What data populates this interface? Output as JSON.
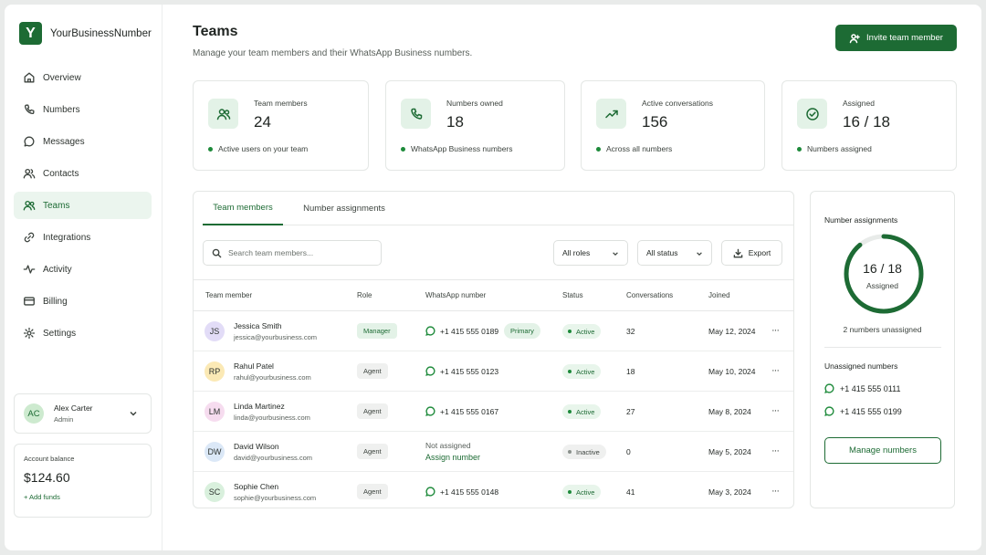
{
  "brand": {
    "logo_letter": "Y",
    "name": "YourBusinessNumber"
  },
  "nav": [
    {
      "label": "Overview",
      "icon": "home-icon"
    },
    {
      "label": "Numbers",
      "icon": "phone-icon"
    },
    {
      "label": "Messages",
      "icon": "message-icon"
    },
    {
      "label": "Contacts",
      "icon": "contacts-icon"
    },
    {
      "label": "Teams",
      "icon": "users-icon",
      "active": true
    },
    {
      "label": "Integrations",
      "icon": "link-icon"
    },
    {
      "label": "Activity",
      "icon": "activity-icon"
    },
    {
      "label": "Billing",
      "icon": "card-icon"
    },
    {
      "label": "Settings",
      "icon": "gear-icon"
    }
  ],
  "user": {
    "initials": "AC",
    "name": "Alex Carter",
    "role": "Admin"
  },
  "balance": {
    "label": "Account balance",
    "amount": "$124.60",
    "add_label": "+ Add funds"
  },
  "header": {
    "title": "Teams",
    "subtitle": "Manage your team members and their WhatsApp Business numbers.",
    "invite_label": "Invite team member"
  },
  "stats": [
    {
      "label": "Team members",
      "value": "24",
      "note": "Active users on your team",
      "icon": "users-icon"
    },
    {
      "label": "Numbers owned",
      "value": "18",
      "note": "WhatsApp Business numbers",
      "icon": "phone-icon"
    },
    {
      "label": "Active conversations",
      "value": "156",
      "note": "Across all numbers",
      "icon": "trend-up-icon"
    },
    {
      "label": "Assigned",
      "value": "16 / 18",
      "note": "Numbers assigned",
      "icon": "check-circle-icon"
    }
  ],
  "tabs": [
    "Team members",
    "Number assignments"
  ],
  "search": {
    "placeholder": "Search team members..."
  },
  "filters": {
    "roles": "All roles",
    "status": "All status",
    "export": "Export"
  },
  "table": {
    "columns": [
      "Team member",
      "Role",
      "WhatsApp number",
      "Status",
      "Conversations",
      "Joined"
    ],
    "rows": [
      {
        "initials": "JS",
        "avatar_color": "#e2dcf7",
        "name": "Jessica Smith",
        "email": "jessica@yourbusiness.com",
        "role": "Manager",
        "number": "+1 415 555 0189",
        "primary": "Primary",
        "status": "Active",
        "conversations": "32",
        "joined": "May 12, 2024"
      },
      {
        "initials": "RP",
        "avatar_color": "#fbe9b5",
        "name": "Rahul Patel",
        "email": "rahul@yourbusiness.com",
        "role": "Agent",
        "number": "+1 415 555 0123",
        "status": "Active",
        "conversations": "18",
        "joined": "May 10, 2024"
      },
      {
        "initials": "LM",
        "avatar_color": "#f6dcef",
        "name": "Linda Martinez",
        "email": "linda@yourbusiness.com",
        "role": "Agent",
        "number": "+1 415 555 0167",
        "status": "Active",
        "conversations": "27",
        "joined": "May 8, 2024"
      },
      {
        "initials": "DW",
        "avatar_color": "#dbe8f7",
        "name": "David Wilson",
        "email": "david@yourbusiness.com",
        "role": "Agent",
        "not_assigned": "Not assigned",
        "assign_label": "Assign number",
        "status": "Inactive",
        "conversations": "0",
        "joined": "May 5, 2024"
      },
      {
        "initials": "SC",
        "avatar_color": "#d9f0dd",
        "name": "Sophie Chen",
        "email": "sophie@yourbusiness.com",
        "role": "Agent",
        "number": "+1 415 555 0148",
        "status": "Active",
        "conversations": "41",
        "joined": "May 3, 2024"
      }
    ],
    "more": "···"
  },
  "assignments": {
    "title": "Number assignments",
    "ring_value": "16 / 18",
    "ring_label": "Assigned",
    "assigned_fraction": 0.889,
    "unassigned_count": "2 numbers unassigned",
    "unassigned_title": "Unassigned numbers",
    "unassigned_numbers": [
      "+1 415 555 0111",
      "+1 415 555 0199"
    ],
    "manage_label": "Manage numbers"
  },
  "colors": {
    "accent": "#1d6b34",
    "accent_light": "#e3f2e7"
  }
}
